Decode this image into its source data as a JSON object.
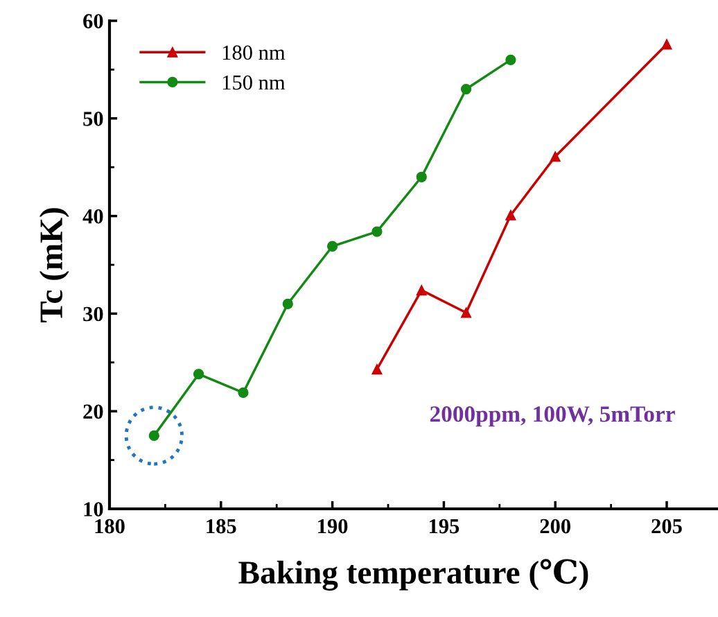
{
  "chart_data": {
    "type": "line",
    "xlabel": "Baking temperature (℃)",
    "ylabel": "Tc (mK)",
    "xlim": [
      180,
      207.3
    ],
    "xticks": [
      180,
      185,
      190,
      195,
      200,
      205
    ],
    "ylim": [
      10,
      60
    ],
    "yticks": [
      10,
      20,
      30,
      40,
      50,
      60
    ],
    "grid": false,
    "legend": "top left",
    "annotations": [
      "2000ppm, 100W, 5mTorr"
    ],
    "series": [
      {
        "name": "180 nm",
        "color": "#cc0000",
        "marker": "triangle",
        "x": [
          192,
          194,
          196,
          198,
          200,
          205
        ],
        "values": [
          24.3,
          32.4,
          30.1,
          40.1,
          46.1,
          57.6
        ]
      },
      {
        "name": "150 nm",
        "color": "#138a13",
        "marker": "circle",
        "x": [
          182,
          184,
          186,
          188,
          190,
          192,
          194,
          196,
          198
        ],
        "values": [
          17.5,
          23.8,
          21.9,
          31.0,
          36.9,
          38.4,
          44.0,
          53.0,
          56.0
        ]
      }
    ]
  }
}
